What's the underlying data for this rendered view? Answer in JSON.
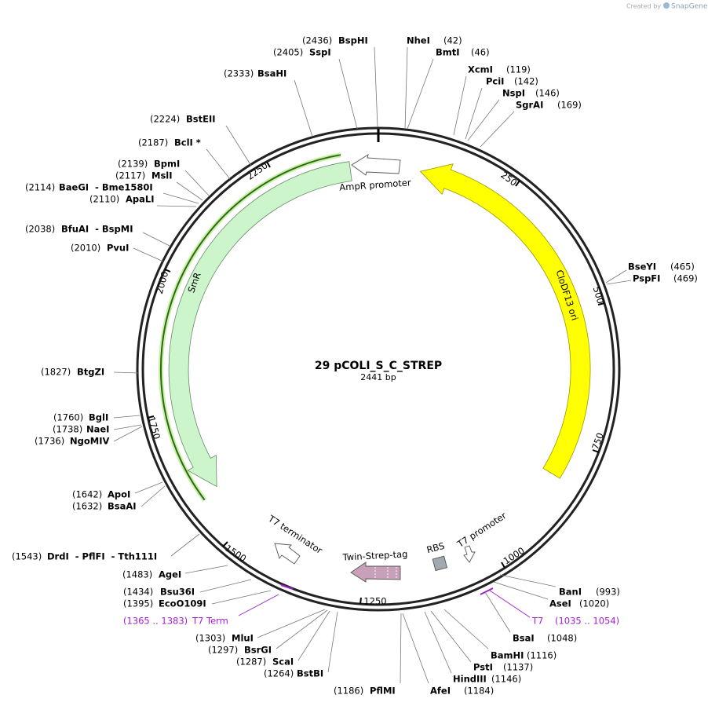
{
  "header": {
    "credit": "Created by",
    "brand": "SnapGene"
  },
  "map": {
    "name": "29 pCOLI_S_C_STREP",
    "length": "2441 bp",
    "ruler": [
      250,
      500,
      750,
      1000,
      1250,
      1500,
      1750,
      2000,
      2250
    ],
    "features": [
      {
        "name": "AmpR promoter"
      },
      {
        "name": "CloDF13 ori"
      },
      {
        "name": "SmR"
      },
      {
        "name": "T7 terminator"
      },
      {
        "name": "Twin-Strep-tag"
      },
      {
        "name": "RBS"
      },
      {
        "name": "T7 promoter"
      }
    ],
    "primers": [
      {
        "range": "(1365 .. 1383)",
        "name": "T7 Term"
      },
      {
        "name": "T7",
        "range": "(1035 .. 1054)"
      }
    ],
    "sites": [
      {
        "position": "(2436)",
        "enzyme": "BspHI"
      },
      {
        "position": "(2405)",
        "enzyme": "SspI"
      },
      {
        "enzyme": "NheI",
        "position": "(42)"
      },
      {
        "enzyme": "BmtI",
        "position": "(46)"
      },
      {
        "position": "(2333)",
        "enzyme": "BsaHI"
      },
      {
        "enzyme": "XcmI",
        "position": "(119)"
      },
      {
        "enzyme": "PciI",
        "position": "(142)"
      },
      {
        "enzyme": "NspI",
        "position": "(146)"
      },
      {
        "enzyme": "SgrAI",
        "position": "(169)"
      },
      {
        "position": "(2224)",
        "enzyme": "BstEII"
      },
      {
        "position": "(2187)",
        "enzyme": "BclI *"
      },
      {
        "position": "(2139)",
        "enzyme": "BpmI"
      },
      {
        "position": "(2117)",
        "enzyme": "MslI"
      },
      {
        "position": "(2114)",
        "enzyme": "BaeGI  - Bme1580I"
      },
      {
        "position": "(2110)",
        "enzyme": "ApaLI"
      },
      {
        "position": "(2038)",
        "enzyme": "BfuAI  - BspMI"
      },
      {
        "position": "(2010)",
        "enzyme": "PvuI"
      },
      {
        "enzyme": "BseYI",
        "position": "(465)"
      },
      {
        "enzyme": "PspFI",
        "position": "(469)"
      },
      {
        "position": "(1827)",
        "enzyme": "BtgZI"
      },
      {
        "position": "(1760)",
        "enzyme": "BglI"
      },
      {
        "position": "(1738)",
        "enzyme": "NaeI"
      },
      {
        "position": "(1736)",
        "enzyme": "NgoMIV"
      },
      {
        "position": "(1642)",
        "enzyme": "ApoI"
      },
      {
        "position": "(1632)",
        "enzyme": "BsaAI"
      },
      {
        "position": "(1543)",
        "enzyme": "DrdI  - PflFI  - Tth111I"
      },
      {
        "position": "(1483)",
        "enzyme": "AgeI"
      },
      {
        "position": "(1434)",
        "enzyme": "Bsu36I"
      },
      {
        "position": "(1395)",
        "enzyme": "EcoO109I"
      },
      {
        "position": "(1303)",
        "enzyme": "MluI"
      },
      {
        "position": "(1297)",
        "enzyme": "BsrGI"
      },
      {
        "position": "(1287)",
        "enzyme": "ScaI"
      },
      {
        "position": "(1264)",
        "enzyme": "BstBI"
      },
      {
        "position": "(1186)",
        "enzyme": "PflMI"
      },
      {
        "enzyme": "AfeI",
        "position": "(1184)"
      },
      {
        "enzyme": "BanI",
        "position": "(993)"
      },
      {
        "enzyme": "AseI",
        "position": "(1020)"
      },
      {
        "enzyme": "BsaI",
        "position": "(1048)"
      },
      {
        "enzyme": "BamHI",
        "position": "(1116)"
      },
      {
        "enzyme": "PstI",
        "position": "(1137)"
      },
      {
        "enzyme": "HindIII",
        "position": "(1146)"
      }
    ]
  }
}
